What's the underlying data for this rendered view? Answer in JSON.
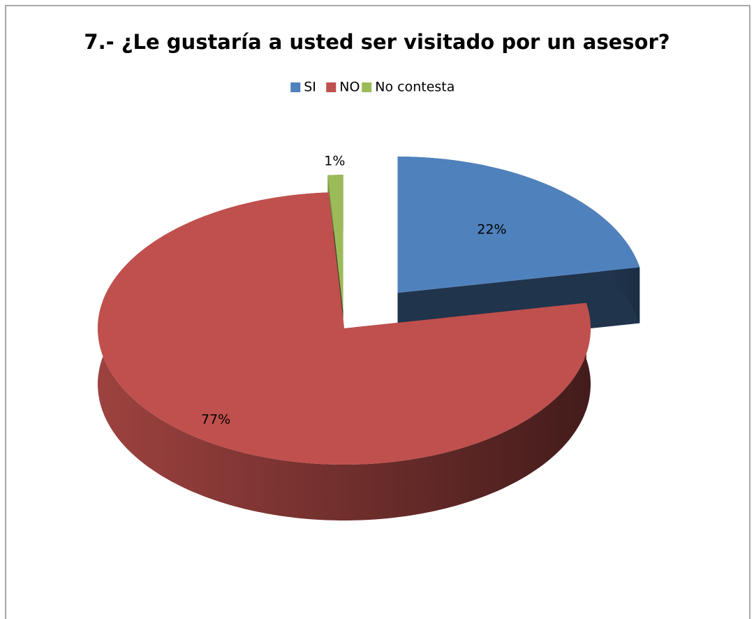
{
  "chart_data": {
    "type": "pie3d",
    "title": "7.- ¿Le gustaría a usted ser visitado por un asesor?",
    "categories": [
      "SI",
      "NO",
      "No contesta"
    ],
    "values": [
      22,
      77,
      1
    ],
    "value_labels": [
      "22%",
      "77%",
      "1%"
    ],
    "colors": [
      "#4f81bd",
      "#c0504d",
      "#9bbb59"
    ],
    "legend": "top"
  }
}
